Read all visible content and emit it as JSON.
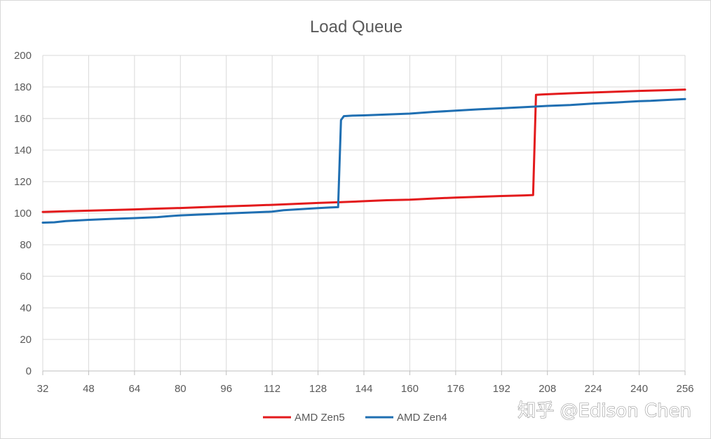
{
  "chart_data": {
    "type": "line",
    "title": "Load Queue",
    "xlabel": "",
    "ylabel": "",
    "xlim": [
      32,
      256
    ],
    "ylim": [
      0,
      200
    ],
    "x_ticks": [
      "32",
      "48",
      "64",
      "80",
      "96",
      "112",
      "128",
      "144",
      "160",
      "176",
      "192",
      "208",
      "224",
      "240",
      "256"
    ],
    "y_ticks": [
      "0",
      "20",
      "40",
      "60",
      "80",
      "100",
      "120",
      "140",
      "160",
      "180",
      "200"
    ],
    "grid": true,
    "legend_position": "bottom",
    "series": [
      {
        "name": "AMD Zen5",
        "color": "#e31a1c",
        "x": [
          32,
          40,
          48,
          56,
          64,
          72,
          80,
          88,
          96,
          104,
          112,
          120,
          128,
          136,
          144,
          152,
          160,
          168,
          176,
          184,
          192,
          200,
          203,
          204,
          206,
          208,
          216,
          224,
          232,
          240,
          248,
          256
        ],
        "y": [
          100.8,
          101.2,
          101.6,
          102.0,
          102.4,
          102.9,
          103.3,
          103.8,
          104.3,
          104.8,
          105.3,
          105.9,
          106.5,
          107.0,
          107.6,
          108.2,
          108.6,
          109.3,
          109.9,
          110.4,
          110.9,
          111.3,
          111.5,
          175.0,
          175.2,
          175.4,
          176.0,
          176.5,
          177.0,
          177.5,
          177.9,
          178.3
        ]
      },
      {
        "name": "AMD Zen4",
        "color": "#1f6fb2",
        "x": [
          32,
          36,
          40,
          48,
          56,
          64,
          72,
          76,
          80,
          88,
          96,
          104,
          112,
          116,
          120,
          128,
          132,
          135,
          136,
          137,
          140,
          144,
          152,
          160,
          168,
          176,
          184,
          192,
          200,
          208,
          216,
          224,
          232,
          240,
          244,
          248,
          256
        ],
        "y": [
          94.0,
          94.2,
          95.0,
          95.8,
          96.4,
          96.9,
          97.5,
          98.1,
          98.6,
          99.2,
          99.8,
          100.4,
          101.0,
          101.9,
          102.3,
          103.2,
          103.6,
          103.8,
          159.0,
          161.5,
          161.8,
          162.0,
          162.6,
          163.1,
          164.2,
          165.0,
          165.8,
          166.5,
          167.2,
          168.0,
          168.6,
          169.5,
          170.2,
          171.0,
          171.2,
          171.6,
          172.3
        ]
      }
    ]
  },
  "watermark": "知乎 @Edison Chen"
}
